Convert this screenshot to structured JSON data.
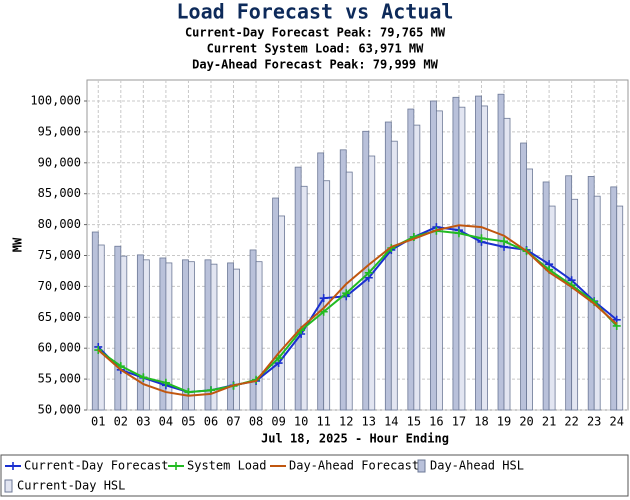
{
  "chart_data": {
    "type": "combo",
    "title": "Load Forecast vs Actual",
    "subtitles": [
      {
        "text": "Current-Day Forecast Peak:  79,765 MW",
        "color": "#1a2fd0"
      },
      {
        "text": "Current System Load:  63,971 MW",
        "color": "#22aa22"
      },
      {
        "text": "Day-Ahead Forecast Peak:  79,999 MW",
        "color": "#c0560f"
      }
    ],
    "x_label": "Jul 18, 2025 - Hour Ending",
    "y_label": "MW",
    "categories": [
      "01",
      "02",
      "03",
      "04",
      "05",
      "06",
      "07",
      "08",
      "09",
      "10",
      "11",
      "12",
      "13",
      "14",
      "15",
      "16",
      "17",
      "18",
      "19",
      "20",
      "21",
      "22",
      "23",
      "24"
    ],
    "ylim": [
      50000,
      103400
    ],
    "yticks": [
      {
        "value": 50000,
        "label": "50,000"
      },
      {
        "value": 55000,
        "label": "55,000"
      },
      {
        "value": 60000,
        "label": "60,000"
      },
      {
        "value": 65000,
        "label": "65,000"
      },
      {
        "value": 70000,
        "label": "70,000"
      },
      {
        "value": 75000,
        "label": "75,000"
      },
      {
        "value": 80000,
        "label": "80,000"
      },
      {
        "value": 85000,
        "label": "85,000"
      },
      {
        "value": 90000,
        "label": "90,000"
      },
      {
        "value": 95000,
        "label": "95,000"
      },
      {
        "value": 100000,
        "label": "100,000"
      }
    ],
    "grid": true,
    "series": [
      {
        "name": "Current-Day Forecast",
        "kind": "line",
        "markers": true,
        "color": "#1a2fd0",
        "values": [
          60200,
          56500,
          55200,
          54000,
          52900,
          53200,
          54000,
          54700,
          57600,
          62300,
          68100,
          68400,
          71400,
          75900,
          78000,
          79600,
          79100,
          77200,
          76400,
          75900,
          73600,
          71000,
          67600,
          64600
        ]
      },
      {
        "name": "System Load",
        "kind": "line",
        "markers": true,
        "color": "#22bb22",
        "values": [
          59700,
          57100,
          55300,
          54400,
          52900,
          53200,
          53900,
          54900,
          58400,
          62900,
          65900,
          68900,
          72200,
          76200,
          78000,
          79000,
          78600,
          77800,
          77300,
          75700,
          72700,
          70200,
          67500,
          63600
        ]
      },
      {
        "name": "Day-Ahead Forecast",
        "kind": "line",
        "markers": false,
        "color": "#c0560f",
        "values": [
          59700,
          56500,
          54200,
          52900,
          52300,
          52600,
          54000,
          54700,
          59200,
          63300,
          66500,
          70400,
          73500,
          76400,
          77700,
          79100,
          79900,
          79600,
          78200,
          75700,
          72300,
          69900,
          67200,
          63900
        ]
      },
      {
        "name": "Day-Ahead HSL",
        "kind": "bar",
        "color": "#b9c1da",
        "values": [
          78800,
          76500,
          75100,
          74600,
          74300,
          74300,
          73800,
          75900,
          84300,
          89300,
          91600,
          92100,
          95100,
          96600,
          98700,
          100000,
          100600,
          100800,
          101100,
          93200,
          86900,
          87900,
          87800,
          86100
        ]
      },
      {
        "name": "Current-Day HSL",
        "kind": "bar",
        "color": "#e2e5f1",
        "values": [
          76700,
          74900,
          74300,
          73800,
          74000,
          73600,
          72800,
          74000,
          81400,
          86200,
          87100,
          88500,
          91100,
          93500,
          96100,
          98400,
          99000,
          99200,
          97200,
          89000,
          83000,
          84100,
          84600,
          83000
        ]
      }
    ]
  }
}
